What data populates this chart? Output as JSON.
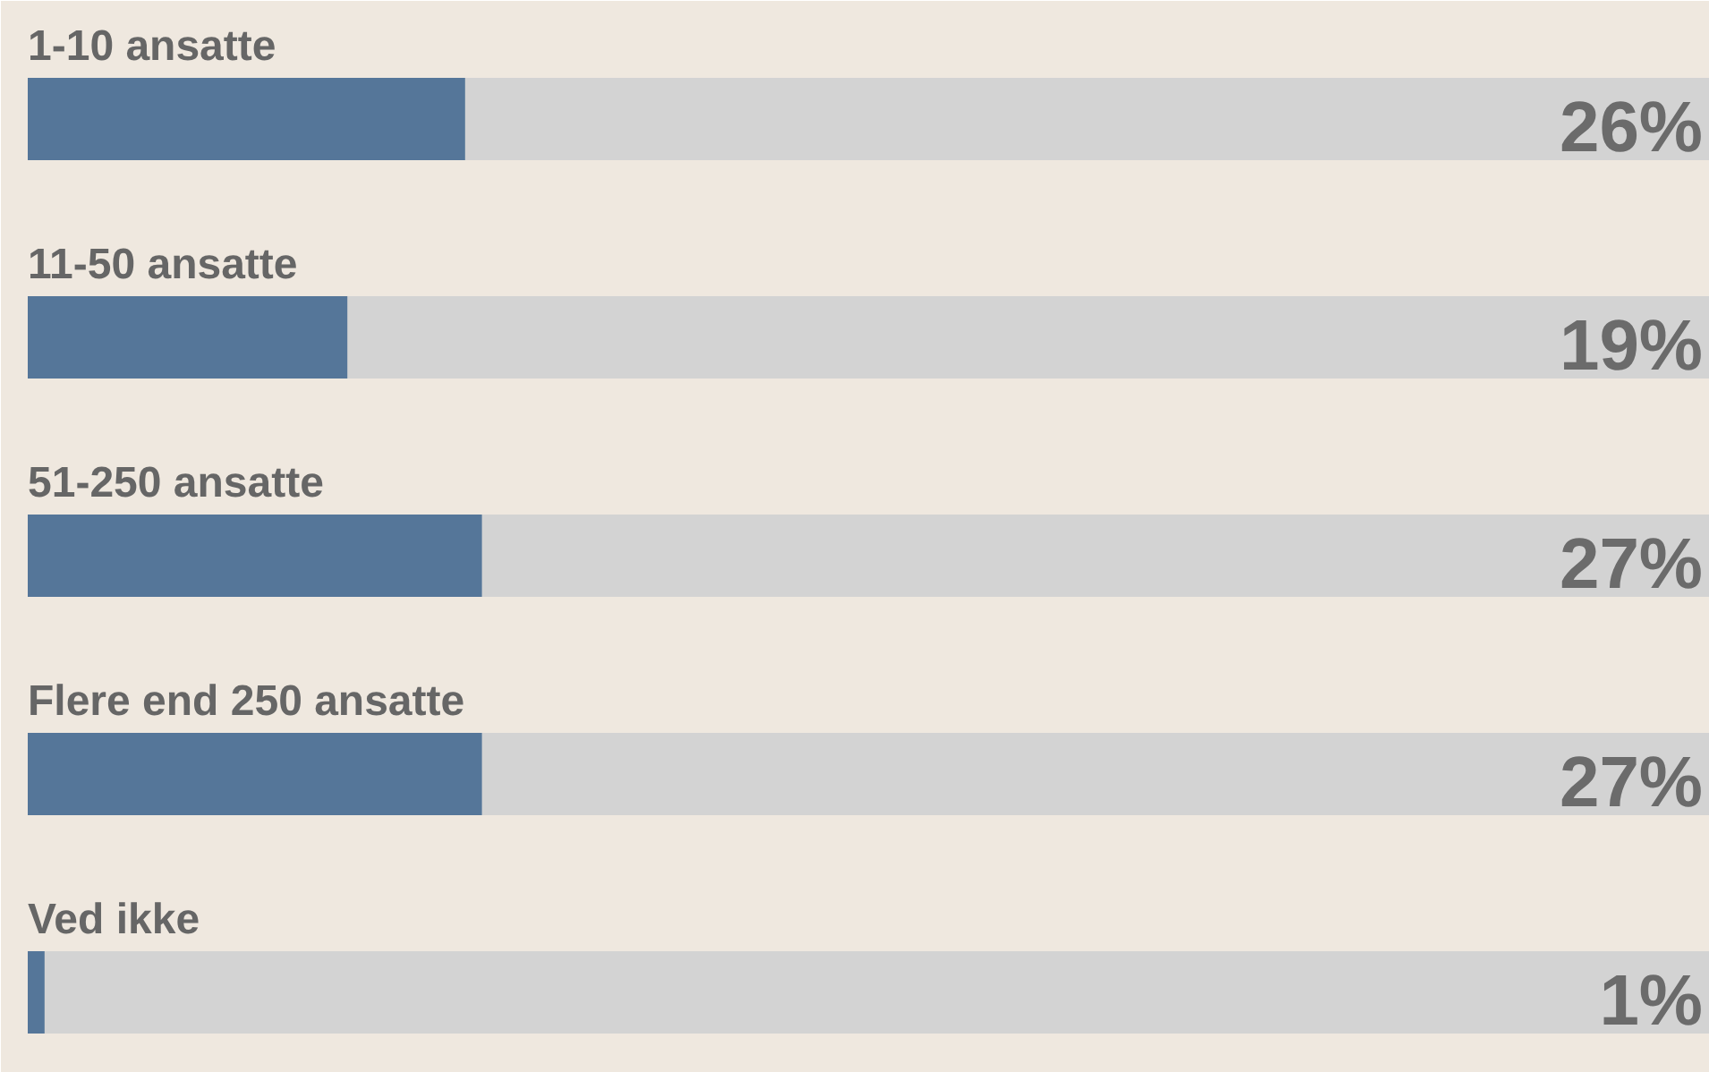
{
  "chart_data": {
    "type": "bar",
    "orientation": "horizontal",
    "categories": [
      "1-10 ansatte",
      "11-50 ansatte",
      "51-250 ansatte",
      "Flere end 250 ansatte",
      "Ved ikke"
    ],
    "xlim": [
      0,
      100
    ],
    "tick_labels": false,
    "grid": false,
    "series": [
      {
        "color": "#557699",
        "values": [
          26,
          19,
          27,
          27,
          1
        ],
        "value_labels": [
          "26%",
          "19%",
          "27%",
          "27%",
          "1%"
        ]
      }
    ]
  }
}
